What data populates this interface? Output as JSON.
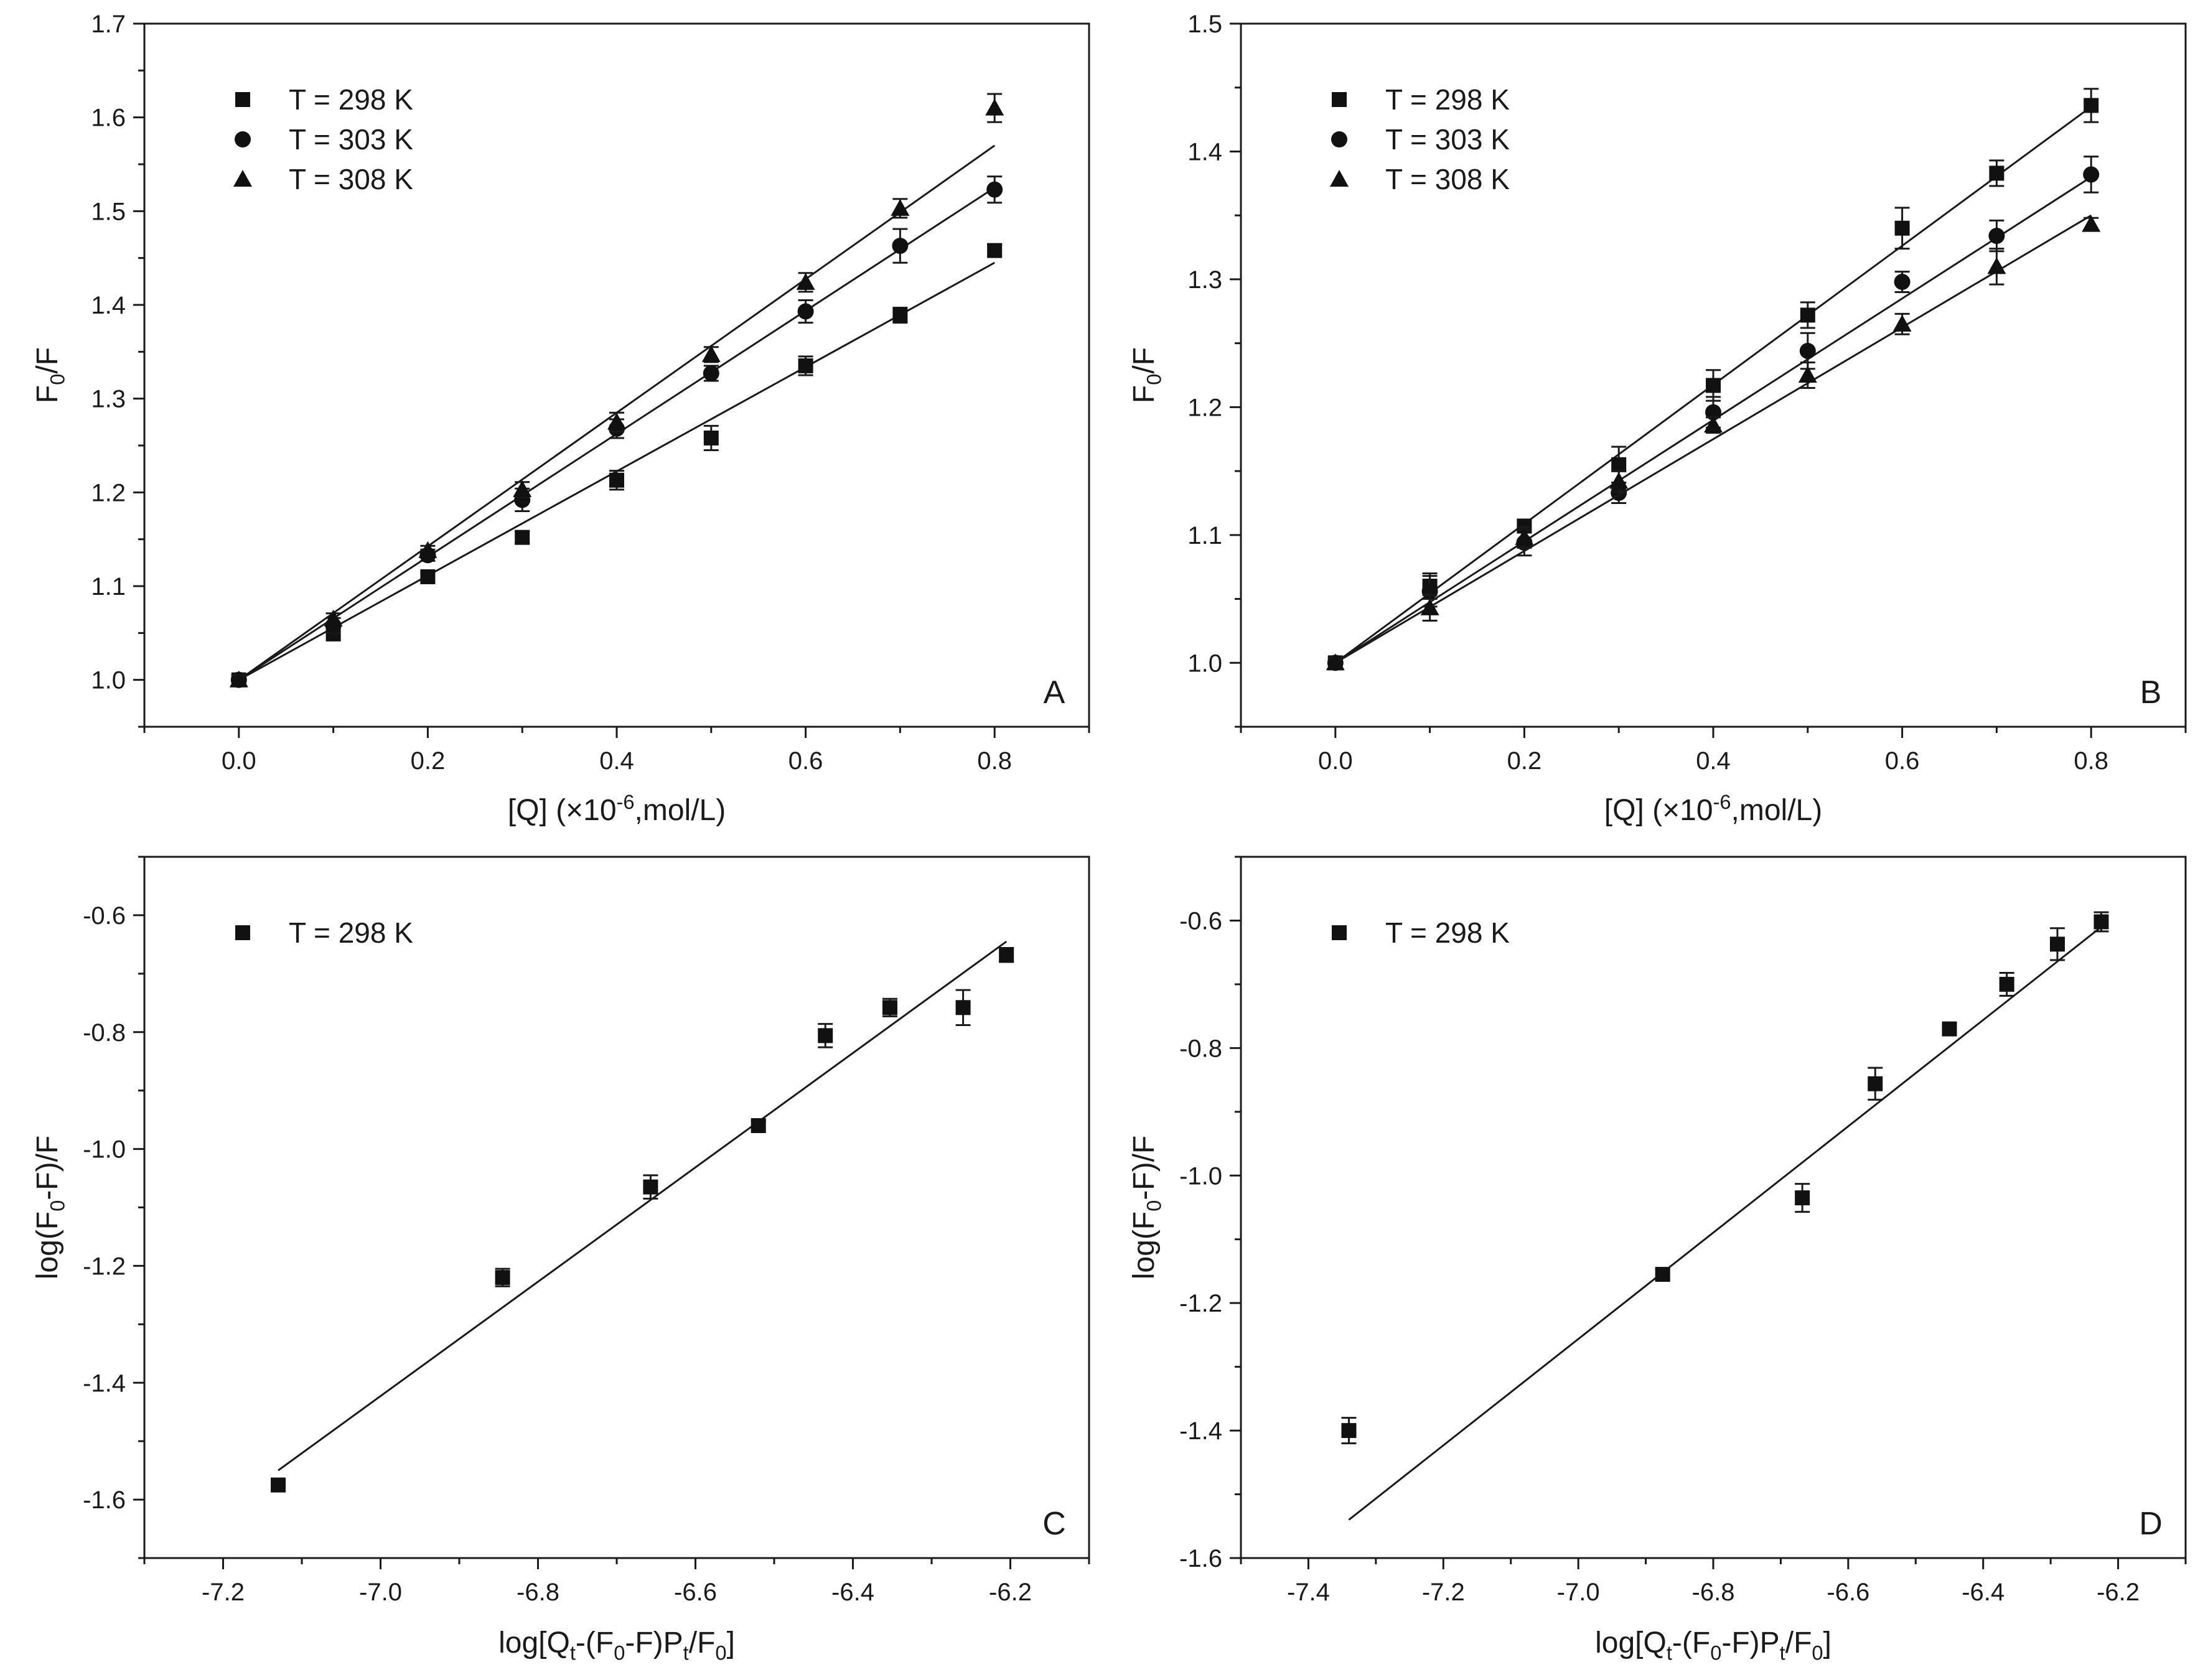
{
  "chart_data": [
    {
      "type": "scatter",
      "panel_label": "A",
      "xlabel_parts": [
        "[Q] (×10",
        "-6",
        ",mol/L)"
      ],
      "ylabel_parts": [
        "F",
        "0",
        "/F"
      ],
      "xlim": [
        -0.1,
        0.9
      ],
      "ylim": [
        0.95,
        1.7
      ],
      "xticks": [
        0.0,
        0.2,
        0.4,
        0.6,
        0.8
      ],
      "xtick_labels": [
        "0.0",
        "0.2",
        "0.4",
        "0.6",
        "0.8"
      ],
      "yticks": [
        1.0,
        1.1,
        1.2,
        1.3,
        1.4,
        1.5,
        1.6,
        1.7
      ],
      "ytick_labels": [
        "1.0",
        "1.1",
        "1.2",
        "1.3",
        "1.4",
        "1.5",
        "1.6",
        "1.7"
      ],
      "legend_position": "top-left",
      "series": [
        {
          "name": "T = 298 K",
          "marker": "square",
          "x": [
            0,
            0.1,
            0.2,
            0.3,
            0.4,
            0.5,
            0.6,
            0.7,
            0.8
          ],
          "y": [
            1.0,
            1.05,
            1.11,
            1.152,
            1.213,
            1.258,
            1.335,
            1.389,
            1.458
          ],
          "err": [
            0.005,
            0.008,
            0.005,
            0.006,
            0.01,
            0.013,
            0.01,
            0.008,
            0.006
          ],
          "fit": [
            [
              0,
              1.0
            ],
            [
              0.8,
              1.445
            ]
          ]
        },
        {
          "name": "T = 303 K",
          "marker": "circle",
          "x": [
            0,
            0.1,
            0.2,
            0.3,
            0.4,
            0.5,
            0.6,
            0.7,
            0.8
          ],
          "y": [
            1.0,
            1.058,
            1.133,
            1.192,
            1.268,
            1.327,
            1.393,
            1.463,
            1.523
          ],
          "err": [
            0.005,
            0.008,
            0.006,
            0.012,
            0.01,
            0.008,
            0.012,
            0.018,
            0.014
          ],
          "fit": [
            [
              0,
              1.0
            ],
            [
              0.8,
              1.525
            ]
          ]
        },
        {
          "name": "T = 308 K",
          "marker": "triangle",
          "x": [
            0,
            0.1,
            0.2,
            0.3,
            0.4,
            0.5,
            0.6,
            0.7,
            0.8
          ],
          "y": [
            1.0,
            1.065,
            1.138,
            1.203,
            1.275,
            1.347,
            1.424,
            1.503,
            1.61
          ],
          "err": [
            0.005,
            0.006,
            0.005,
            0.008,
            0.01,
            0.008,
            0.01,
            0.01,
            0.015
          ],
          "fit": [
            [
              0,
              1.0
            ],
            [
              0.8,
              1.57
            ]
          ]
        }
      ]
    },
    {
      "type": "scatter",
      "panel_label": "B",
      "xlabel_parts": [
        "[Q] (×10",
        "-6",
        ",mol/L)"
      ],
      "ylabel_parts": [
        "F",
        "0",
        "/F"
      ],
      "xlim": [
        -0.1,
        0.9
      ],
      "ylim": [
        0.95,
        1.5
      ],
      "xticks": [
        0.0,
        0.2,
        0.4,
        0.6,
        0.8
      ],
      "xtick_labels": [
        "0.0",
        "0.2",
        "0.4",
        "0.6",
        "0.8"
      ],
      "yticks": [
        1.0,
        1.1,
        1.2,
        1.3,
        1.4,
        1.5
      ],
      "ytick_labels": [
        "1.0",
        "1.1",
        "1.2",
        "1.3",
        "1.4",
        "1.5"
      ],
      "legend_position": "top-left",
      "series": [
        {
          "name": "T = 298 K",
          "marker": "square",
          "x": [
            0,
            0.1,
            0.2,
            0.3,
            0.4,
            0.5,
            0.6,
            0.7,
            0.8
          ],
          "y": [
            1.0,
            1.06,
            1.107,
            1.155,
            1.217,
            1.272,
            1.34,
            1.383,
            1.436
          ],
          "err": [
            0.004,
            0.01,
            0.005,
            0.014,
            0.012,
            0.01,
            0.016,
            0.01,
            0.013
          ],
          "fit": [
            [
              0,
              1.0
            ],
            [
              0.8,
              1.435
            ]
          ]
        },
        {
          "name": "T = 303 K",
          "marker": "circle",
          "x": [
            0,
            0.1,
            0.2,
            0.3,
            0.4,
            0.5,
            0.6,
            0.7,
            0.8
          ],
          "y": [
            1.0,
            1.056,
            1.094,
            1.133,
            1.196,
            1.244,
            1.298,
            1.334,
            1.382
          ],
          "err": [
            0.004,
            0.012,
            0.01,
            0.008,
            0.012,
            0.014,
            0.008,
            0.012,
            0.014
          ],
          "fit": [
            [
              0,
              1.0
            ],
            [
              0.8,
              1.38
            ]
          ]
        },
        {
          "name": "T = 308 K",
          "marker": "triangle",
          "x": [
            0,
            0.1,
            0.2,
            0.3,
            0.4,
            0.5,
            0.6,
            0.7,
            0.8
          ],
          "y": [
            1.0,
            1.043,
            1.098,
            1.142,
            1.186,
            1.225,
            1.265,
            1.31,
            1.343
          ],
          "err": [
            0.004,
            0.01,
            0.008,
            0.008,
            0.006,
            0.01,
            0.008,
            0.014,
            0.005
          ],
          "fit": [
            [
              0,
              1.0
            ],
            [
              0.8,
              1.35
            ]
          ]
        }
      ]
    },
    {
      "type": "scatter",
      "panel_label": "C",
      "xlabel_parts": [
        "log[Q",
        "t",
        "-(F",
        "0",
        "-F)P",
        "t",
        "/F",
        "0",
        "]"
      ],
      "ylabel_parts": [
        "log(F",
        "0",
        "-F)/F"
      ],
      "xlim": [
        -7.3,
        -6.1
      ],
      "ylim": [
        -1.7,
        -0.5
      ],
      "xticks": [
        -7.2,
        -7.0,
        -6.8,
        -6.6,
        -6.4,
        -6.2
      ],
      "xtick_labels": [
        "-7.2",
        "-7.0",
        "-6.8",
        "-6.6",
        "-6.4",
        "-6.2"
      ],
      "yticks": [
        -1.6,
        -1.4,
        -1.2,
        -1.0,
        -0.8,
        -0.6
      ],
      "ytick_labels": [
        "-1.6",
        "-1.4",
        "-1.2",
        "-1.0",
        "-0.8",
        "-0.6"
      ],
      "legend_position": "top-left",
      "series": [
        {
          "name": "T = 298 K",
          "marker": "square",
          "x": [
            -7.13,
            -6.845,
            -6.657,
            -6.52,
            -6.435,
            -6.353,
            -6.26,
            -6.205
          ],
          "y": [
            -1.575,
            -1.22,
            -1.065,
            -0.96,
            -0.806,
            -0.758,
            -0.758,
            -0.668
          ],
          "err": [
            0.01,
            0.015,
            0.02,
            0.008,
            0.02,
            0.015,
            0.03,
            0.012
          ],
          "fit": [
            [
              -7.13,
              -1.55
            ],
            [
              -6.205,
              -0.645
            ]
          ]
        }
      ]
    },
    {
      "type": "scatter",
      "panel_label": "D",
      "xlabel_parts": [
        "log[Q",
        "t",
        "-(F",
        "0",
        "-F)P",
        "t",
        "/F",
        "0",
        "]"
      ],
      "ylabel_parts": [
        "log(F",
        "0",
        "-F)/F"
      ],
      "xlim": [
        -7.5,
        -6.1
      ],
      "ylim": [
        -1.6,
        -0.5
      ],
      "xticks": [
        -7.4,
        -7.2,
        -7.0,
        -6.8,
        -6.6,
        -6.4,
        -6.2
      ],
      "xtick_labels": [
        "-7.4",
        "-7.2",
        "-7.0",
        "-6.8",
        "-6.6",
        "-6.4",
        "-6.2"
      ],
      "yticks": [
        -1.6,
        -1.4,
        -1.2,
        -1.0,
        -0.8,
        -0.6
      ],
      "ytick_labels": [
        "-1.6",
        "-1.4",
        "-1.2",
        "-1.0",
        "-0.8",
        "-0.6"
      ],
      "legend_position": "top-left",
      "series": [
        {
          "name": "T = 298 K",
          "marker": "square",
          "x": [
            -7.34,
            -6.875,
            -6.668,
            -6.56,
            -6.45,
            -6.365,
            -6.29,
            -6.225
          ],
          "y": [
            -1.4,
            -1.155,
            -1.035,
            -0.856,
            -0.77,
            -0.7,
            -0.637,
            -0.602
          ],
          "err": [
            0.02,
            0.008,
            0.022,
            0.025,
            0.008,
            0.018,
            0.025,
            0.015
          ],
          "fit": [
            [
              -7.34,
              -1.54
            ],
            [
              -6.225,
              -0.61
            ]
          ]
        }
      ]
    }
  ]
}
